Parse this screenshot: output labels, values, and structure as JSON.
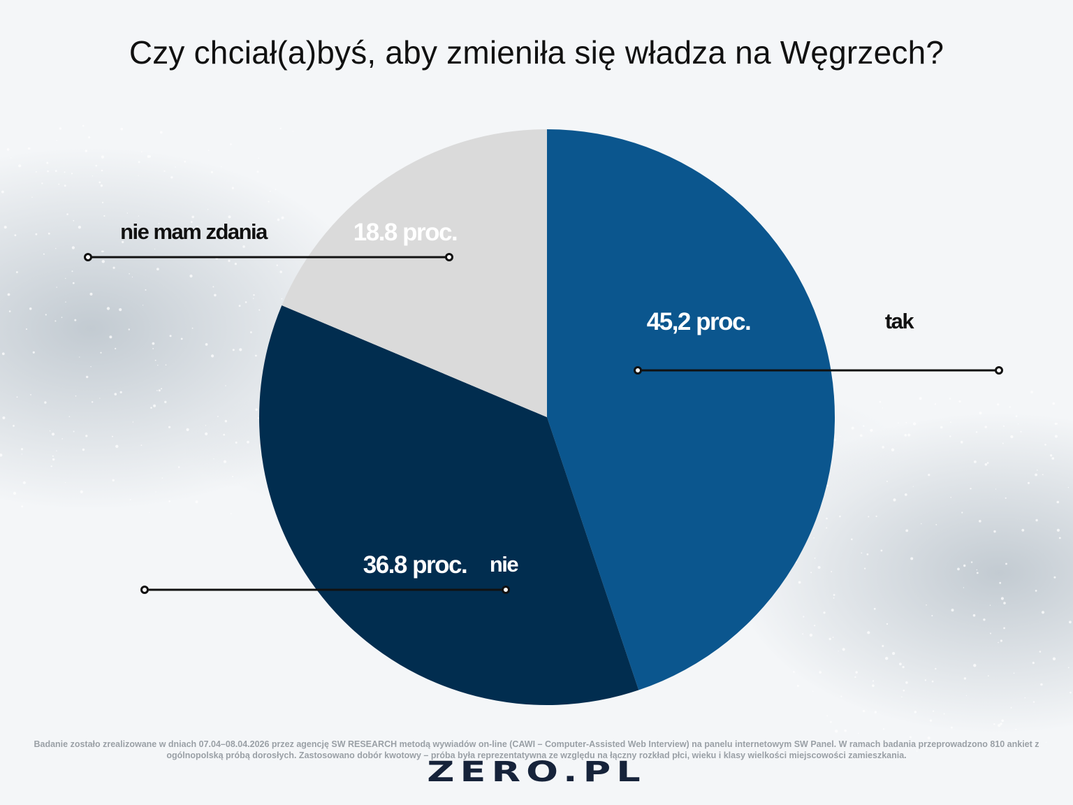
{
  "title": "Czy chciał(a)byś, aby zmieniła się władza na Węgrzech?",
  "chart_data": {
    "type": "pie",
    "title": "Czy chciał(a)byś, aby zmieniła się władza na Węgrzech?",
    "slices": [
      {
        "category": "tak",
        "value": 45.2,
        "value_label": "45,2 proc.",
        "color": "#0b568e"
      },
      {
        "category": "nie",
        "value": 36.8,
        "value_label": "36.8 proc.",
        "color": "#012d4f"
      },
      {
        "category": "nie mam zdania",
        "value": 18.8,
        "value_label": "18.8 proc.",
        "color": "#dadada"
      }
    ]
  },
  "footnote": "Badanie zostało zrealizowane w dniach 07.04–08.04.2026 przez agencję SW RESEARCH metodą wywiadów on-line (CAWI – Computer-Assisted Web Interview) na panelu internetowym SW Panel. W ramach badania przeprowadzono 810 ankiet z ogólnopolską próbą dorosłych. Zastosowano dobór kwotowy – próba była reprezentatywna ze względu na łączny rozkład płci, wieku i klasy wielkości miejscowości zamieszkania.",
  "logo": "ZERO.PL"
}
